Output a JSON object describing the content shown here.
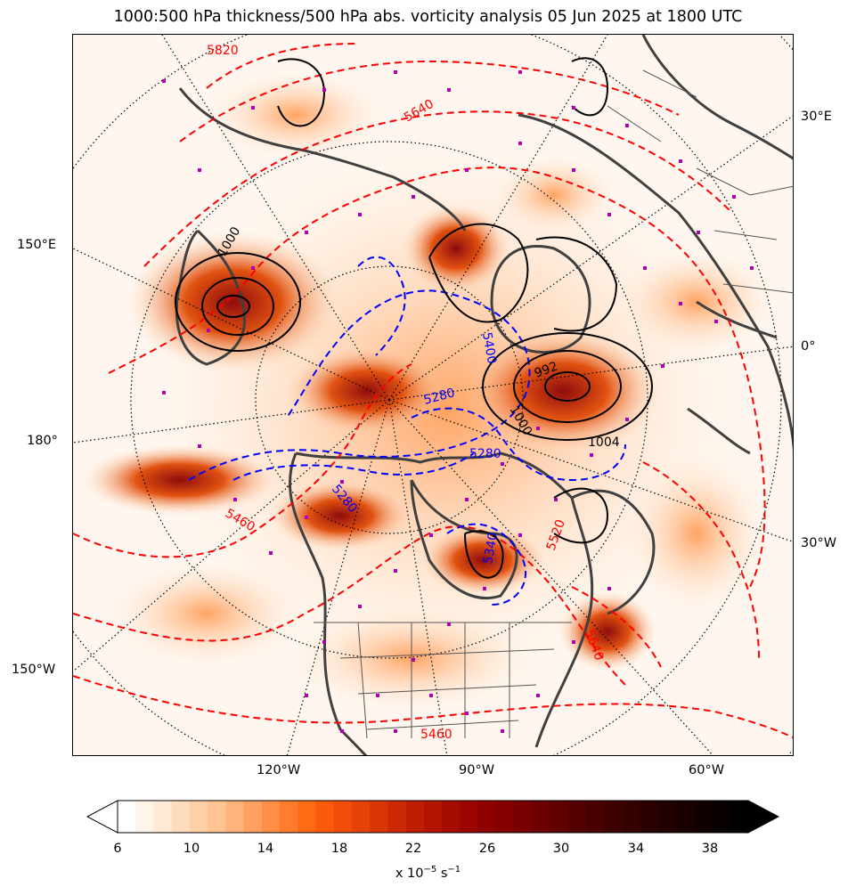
{
  "title": "1000:500 hPa thickness/500 hPa abs. vorticity analysis 05 Jun 2025 at 1800 UTC",
  "map": {
    "projection": "north-polar-stereographic",
    "longitude_labels": {
      "top_right": "30°E",
      "upper_left": "150°E",
      "right_mid": "0°",
      "left_mid": "180°",
      "right_lower": "30°W",
      "left_lower": "150°W",
      "bottom_1": "120°W",
      "bottom_2": "90°W",
      "bottom_3": "60°W"
    },
    "thickness_contour_labels_red": [
      "5820",
      "5640",
      "5460",
      "5520",
      "5640",
      "5460"
    ],
    "thickness_contour_labels_blue": [
      "5280",
      "5280",
      "5400",
      "5280",
      "5340"
    ],
    "pressure_contour_labels_black": [
      "1000",
      "992",
      "1000",
      "1004"
    ],
    "colors": {
      "thickness_warm": "#ff0000",
      "thickness_cold": "#0000ff",
      "mslp": "#000000",
      "coastlines": "#404040",
      "station_markers": "#b000b0"
    }
  },
  "colorbar": {
    "tick_labels": [
      "6",
      "10",
      "14",
      "18",
      "22",
      "26",
      "30",
      "34",
      "38"
    ],
    "units_prefix": "x 10",
    "units_exp": "−5",
    "units_suffix": " s",
    "units_exp2": "−1",
    "colors": [
      "#ffffff",
      "#fff4ea",
      "#ffe8d4",
      "#ffdcbe",
      "#ffd0a8",
      "#ffc492",
      "#ffb27a",
      "#ffa060",
      "#ff8e46",
      "#ff7c2c",
      "#ff6a14",
      "#fa5a0a",
      "#f04e08",
      "#e44206",
      "#d83605",
      "#cc2a04",
      "#c01e03",
      "#b41402",
      "#a80c01",
      "#9c0400",
      "#900000",
      "#840000",
      "#780000",
      "#6c0000",
      "#600000",
      "#540000",
      "#480000",
      "#3e0000",
      "#340000",
      "#2a0000",
      "#200000",
      "#180000",
      "#100000",
      "#080000",
      "#000000"
    ]
  }
}
